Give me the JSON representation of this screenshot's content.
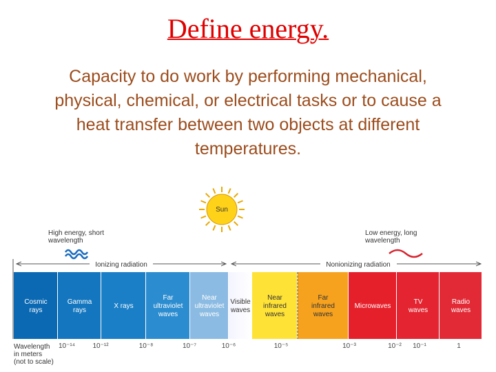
{
  "header": {
    "title": "Define energy."
  },
  "body": {
    "lines": [
      "Capacity to do work by performing mechanical,",
      "physical, chemical, or electrical tasks or to cause a",
      "heat transfer between two objects at different",
      "temperatures."
    ]
  },
  "diagram": {
    "sun": "Sun",
    "high_energy": [
      "High energy, short",
      "wavelength"
    ],
    "low_energy": [
      "Low energy, long",
      "wavelength"
    ],
    "ionizing": "Ionizing radiation",
    "nonionizing": "Nonionizing radiation",
    "bands": [
      {
        "lines": [
          "Cosmic",
          "rays"
        ],
        "color": "#0b69b3"
      },
      {
        "lines": [
          "Gamma",
          "rays"
        ],
        "color": "#1376be"
      },
      {
        "lines": [
          "X rays"
        ],
        "color": "#1b7fc7"
      },
      {
        "lines": [
          "Far",
          "ultraviolet",
          "waves"
        ],
        "color": "#2b8ccf"
      },
      {
        "lines": [
          "Near",
          "ultraviolet",
          "waves"
        ],
        "color": "#8bbbe2"
      },
      {
        "lines": [
          "Visible",
          "waves"
        ],
        "color": "#ffffff"
      },
      {
        "lines": [
          "Near",
          "infrared",
          "waves"
        ],
        "color": "#ffe236"
      },
      {
        "lines": [
          "Far",
          "infrared",
          "waves"
        ],
        "color": "#f6a21f"
      },
      {
        "lines": [
          "Microwaves"
        ],
        "color": "#e6202b"
      },
      {
        "lines": [
          "TV",
          "waves"
        ],
        "color": "#e42430"
      },
      {
        "lines": [
          "Radio",
          "waves"
        ],
        "color": "#e22a36"
      }
    ],
    "wavelength_label": [
      "Wavelength",
      "in meters",
      "(not to scale)"
    ],
    "wavelengths": [
      "10⁻¹⁴",
      "10⁻¹²",
      "10⁻⁸",
      "10⁻⁷",
      "10⁻⁶",
      "10⁻⁵",
      "10⁻³",
      "10⁻²",
      "10⁻¹",
      "1"
    ]
  }
}
